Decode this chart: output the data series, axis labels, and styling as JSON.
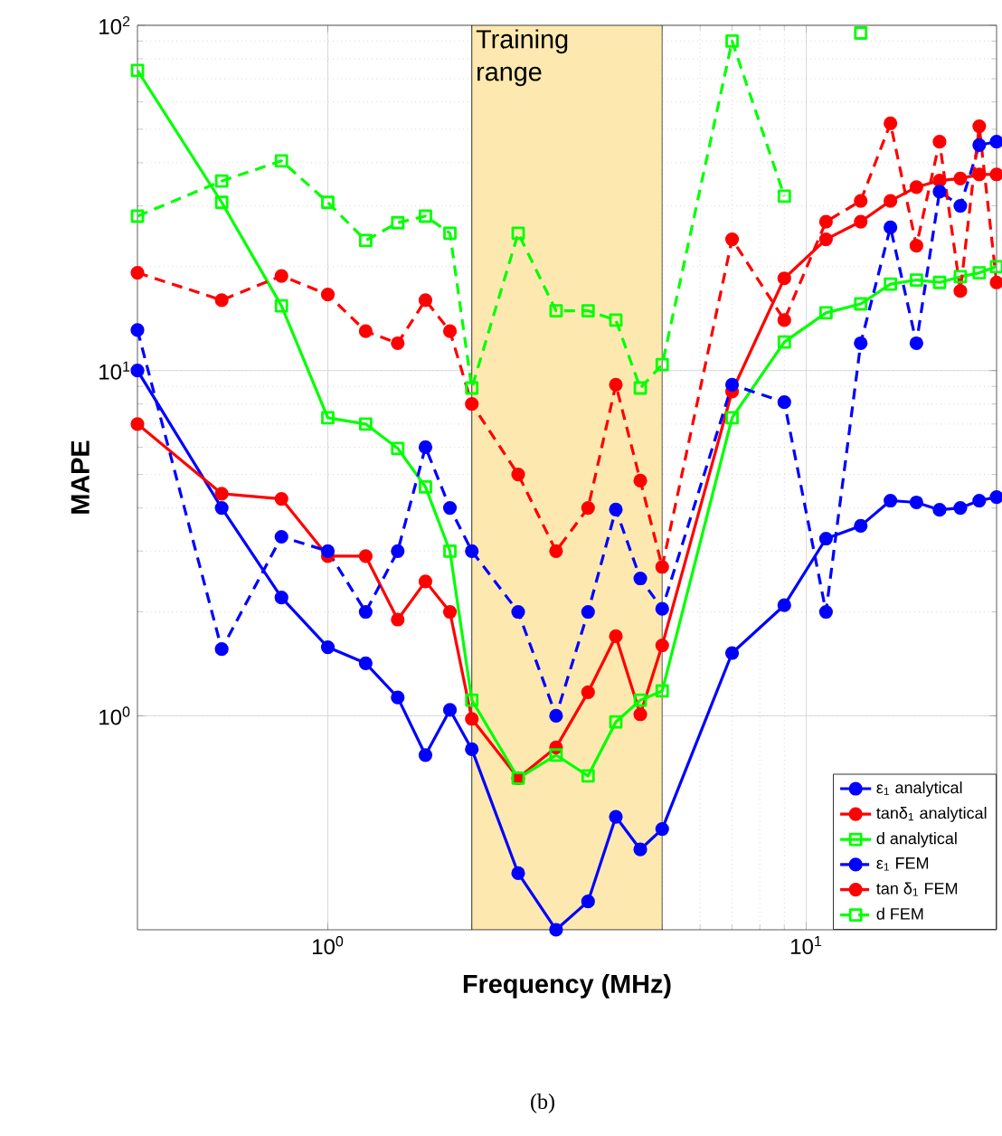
{
  "chart_data": {
    "type": "line",
    "xlabel": "Frequency (MHz)",
    "ylabel": "MAPE",
    "x": [
      0.4,
      0.6,
      0.8,
      1.0,
      1.2,
      1.4,
      1.6,
      1.8,
      2.0,
      2.5,
      3.0,
      3.5,
      4.0,
      4.5,
      5.0,
      7,
      9,
      11,
      13,
      15,
      17,
      19,
      21,
      23,
      25
    ],
    "series": [
      {
        "name": "ε$_{1}$ analytical",
        "color": "#0000ff",
        "marker": "circle",
        "line_style": "solid",
        "values": [
          10.0,
          4.0,
          2.2,
          1.58,
          1.42,
          1.13,
          0.77,
          1.04,
          0.8,
          0.35,
          0.24,
          0.29,
          0.51,
          0.41,
          0.47,
          1.52,
          2.09,
          3.26,
          3.55,
          4.2,
          4.15,
          3.95,
          4.0,
          4.2,
          4.3
        ]
      },
      {
        "name": "tanδ$_{1}$ analytical",
        "color": "#ff0000",
        "marker": "circle",
        "line_style": "solid",
        "values": [
          7.0,
          4.4,
          4.25,
          2.9,
          2.9,
          1.9,
          2.45,
          2.0,
          0.98,
          0.66,
          0.81,
          1.17,
          1.7,
          1.01,
          1.6,
          8.7,
          18.5,
          24,
          27,
          31,
          34,
          35.5,
          36,
          37,
          37
        ]
      },
      {
        "name": "d analytical",
        "color": "#00ff00",
        "marker": "square",
        "line_style": "solid",
        "values": [
          74,
          30.7,
          15.4,
          7.3,
          7.0,
          5.95,
          4.6,
          3.0,
          1.11,
          0.66,
          0.77,
          0.67,
          0.96,
          1.11,
          1.18,
          7.3,
          12.1,
          14.7,
          15.6,
          17.8,
          18.3,
          18,
          18.7,
          19.2,
          20
        ]
      },
      {
        "name": "ε$_{1}$ FEM",
        "color": "#0000ff",
        "marker": "circle",
        "line_style": "dashed",
        "values": [
          13.1,
          1.56,
          3.3,
          3.0,
          2.0,
          3.0,
          6.0,
          4.0,
          3.0,
          2.0,
          1.0,
          2.0,
          3.96,
          2.5,
          2.04,
          9.1,
          8.1,
          2.0,
          12,
          26,
          12,
          33,
          30,
          45,
          46
        ]
      },
      {
        "name": "tan δ$_{1}$ FEM",
        "color": "#ff0000",
        "marker": "circle",
        "line_style": "dashed",
        "values": [
          19.2,
          16.0,
          18.8,
          16.6,
          13.0,
          12.0,
          16.0,
          13.0,
          8.0,
          5.0,
          3.0,
          4.0,
          9.1,
          4.8,
          2.7,
          24,
          14,
          27,
          31,
          52,
          23,
          46,
          17,
          51,
          18
        ]
      },
      {
        "name": "d FEM",
        "color": "#00ff00",
        "marker": "square",
        "line_style": "dashed",
        "values": [
          28,
          35.4,
          40.5,
          30.7,
          23.8,
          26.8,
          28,
          25,
          8.9,
          25,
          14.9,
          14.9,
          14,
          8.9,
          10.4,
          90,
          32,
          null,
          95,
          null,
          null,
          null,
          null,
          null,
          null
        ]
      }
    ],
    "xlim": [
      0.4,
      25
    ],
    "ylim": [
      0.24,
      100
    ],
    "xticks": [
      {
        "value": 1,
        "label": "10$^{0}$"
      },
      {
        "value": 10,
        "label": "10$^{1}$"
      }
    ],
    "yticks": [
      {
        "value": 1,
        "label": "10$^{0}$"
      },
      {
        "value": 10,
        "label": "10$^{1}$"
      },
      {
        "value": 100,
        "label": "10$^{2}$"
      }
    ],
    "log": "xy",
    "grid": true,
    "legend": "bottom right",
    "bands": [
      {
        "axis": "x",
        "from": 2,
        "to": 5,
        "label": "Training range",
        "color": "#fde9b0"
      }
    ],
    "annotations": [
      "(b)"
    ]
  }
}
